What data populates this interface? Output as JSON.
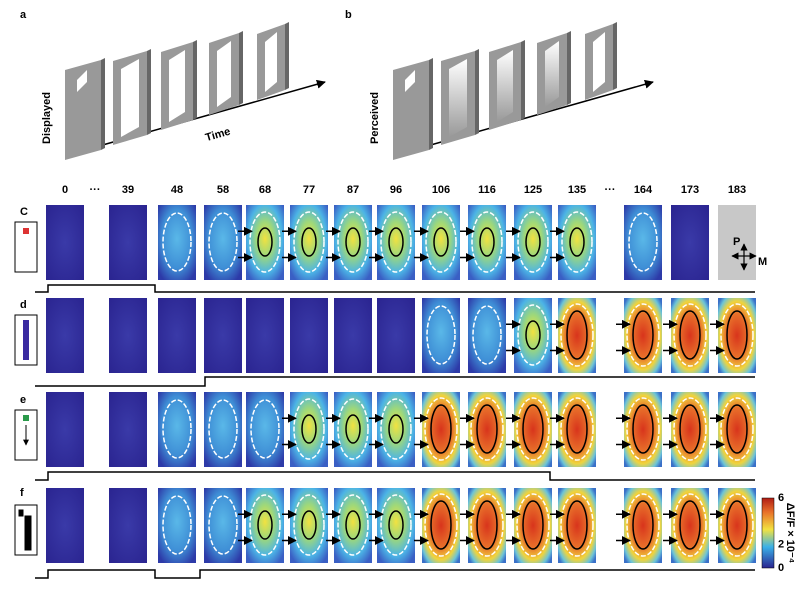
{
  "panels": {
    "a": {
      "label": "a",
      "ylabel": "Displayed",
      "xlabel": "Time"
    },
    "b": {
      "label": "b",
      "ylabel": "Perceived"
    }
  },
  "time_labels": [
    "0",
    "···",
    "39",
    "48",
    "58",
    "68",
    "77",
    "87",
    "96",
    "106",
    "116",
    "125",
    "135",
    "···",
    "164",
    "173",
    "183"
  ],
  "rows": [
    {
      "label": "C"
    },
    {
      "label": "d"
    },
    {
      "label": "e"
    },
    {
      "label": "f"
    }
  ],
  "orientation": {
    "posterior": "P",
    "medial": "M"
  },
  "colorbar": {
    "label": "ΔF/F × 10⁻⁴",
    "ticks": [
      6,
      2,
      0
    ]
  }
}
